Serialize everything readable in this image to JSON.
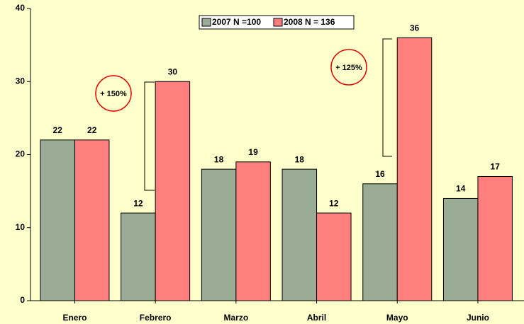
{
  "chart_data": {
    "type": "bar",
    "categories": [
      "Enero",
      "Febrero",
      "Marzo",
      "Abril",
      "Mayo",
      "Junio"
    ],
    "series": [
      {
        "name": "2007 N =100",
        "color": "#9aab96",
        "values": [
          22,
          12,
          18,
          18,
          16,
          14
        ]
      },
      {
        "name": "2008 N = 136",
        "color": "#ff7f7f",
        "values": [
          22,
          30,
          19,
          12,
          36,
          17
        ]
      }
    ],
    "ylim": [
      0,
      40
    ],
    "yticks": [
      0,
      10,
      20,
      30,
      40
    ],
    "annotations": [
      "+ 150%",
      "+ 125%"
    ]
  }
}
